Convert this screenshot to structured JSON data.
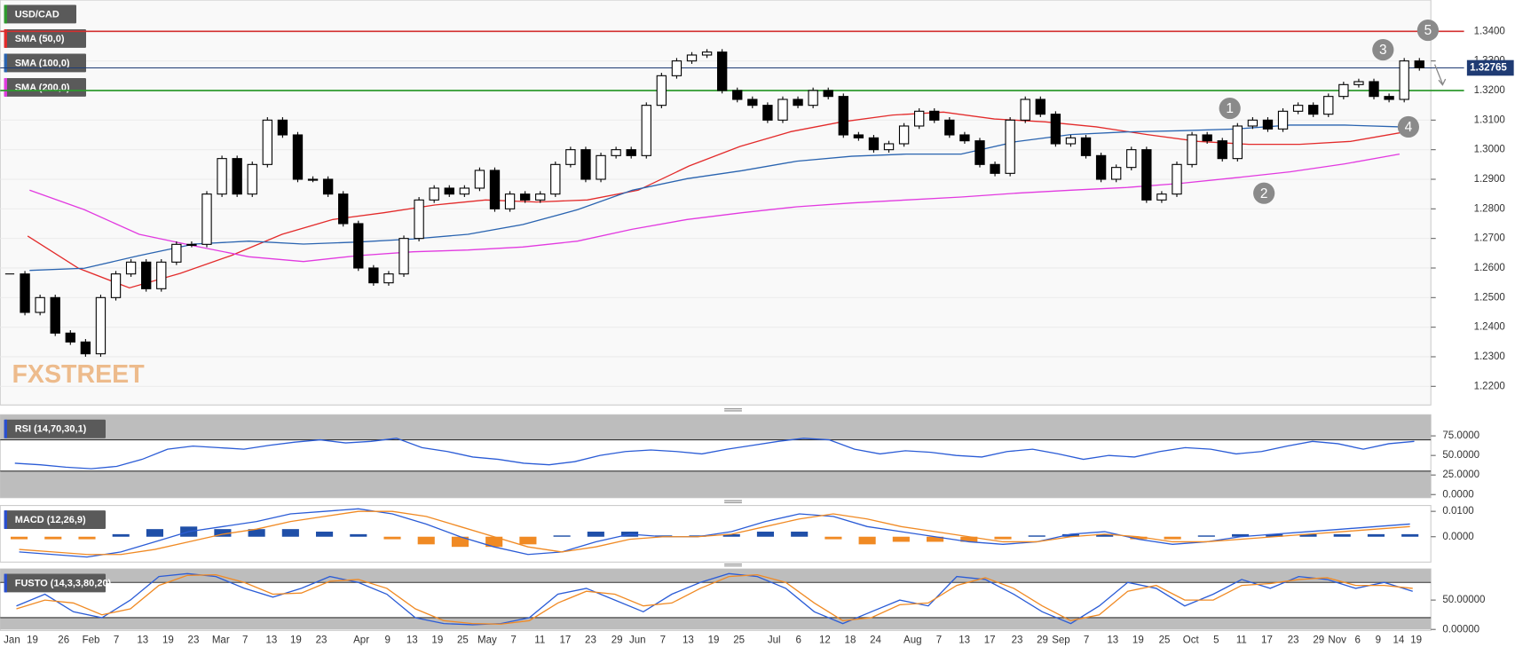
{
  "chart_data": [
    {
      "type": "candlestick",
      "title": "USD/CAD",
      "title_color": "#2e9a2e",
      "close": [
        1.258,
        1.245,
        1.25,
        1.238,
        1.235,
        1.231,
        1.25,
        1.258,
        1.262,
        1.253,
        1.262,
        1.268,
        1.268,
        1.285,
        1.297,
        1.285,
        1.295,
        1.31,
        1.305,
        1.29,
        1.29,
        1.285,
        1.275,
        1.26,
        1.255,
        1.258,
        1.27,
        1.283,
        1.287,
        1.285,
        1.287,
        1.293,
        1.28,
        1.285,
        1.283,
        1.285,
        1.295,
        1.3,
        1.29,
        1.298,
        1.3,
        1.298,
        1.315,
        1.325,
        1.33,
        1.332,
        1.333,
        1.32,
        1.317,
        1.315,
        1.31,
        1.317,
        1.315,
        1.32,
        1.318,
        1.305,
        1.304,
        1.3,
        1.302,
        1.308,
        1.313,
        1.31,
        1.305,
        1.303,
        1.295,
        1.292,
        1.31,
        1.317,
        1.312,
        1.302,
        1.304,
        1.298,
        1.29,
        1.294,
        1.3,
        1.283,
        1.285,
        1.295,
        1.305,
        1.303,
        1.297,
        1.308,
        1.31,
        1.307,
        1.313,
        1.315,
        1.312,
        1.318,
        1.322,
        1.323,
        1.318,
        1.317,
        1.33,
        1.3277
      ],
      "series": [
        {
          "name": "SMA (50,0)",
          "color": "#e32b2b",
          "values": [
            1.2708,
            1.2599,
            1.2533,
            1.2582,
            1.2642,
            1.2714,
            1.2764,
            1.2787,
            1.2813,
            1.283,
            1.2823,
            1.283,
            1.2863,
            1.2945,
            1.3011,
            1.3061,
            1.3094,
            1.3117,
            1.3127,
            1.3104,
            1.3094,
            1.3077,
            1.3051,
            1.3028,
            1.3018,
            1.3018,
            1.3028,
            1.3058
          ]
        },
        {
          "name": "SMA (100,0)",
          "color": "#2a64b0",
          "values": [
            1.2592,
            1.2599,
            1.2642,
            1.2681,
            1.2691,
            1.2681,
            1.2688,
            1.2698,
            1.2714,
            1.2747,
            1.2797,
            1.2863,
            1.2902,
            1.2929,
            1.2961,
            1.2978,
            1.2985,
            1.2985,
            1.3027,
            1.3051,
            1.306,
            1.3064,
            1.307,
            1.3083,
            1.3083,
            1.3077
          ]
        },
        {
          "name": "SMA (200,0)",
          "color": "#e23ae0",
          "values": [
            1.2863,
            1.2797,
            1.2714,
            1.2675,
            1.2638,
            1.2622,
            1.2642,
            1.2655,
            1.2661,
            1.2671,
            1.2691,
            1.2731,
            1.2764,
            1.2787,
            1.2807,
            1.282,
            1.283,
            1.284,
            1.2853,
            1.2863,
            1.2872,
            1.2886,
            1.2905,
            1.2925,
            1.2952,
            1.2985
          ]
        }
      ],
      "levels": [
        {
          "value": 1.34,
          "color": "#d32f2f"
        },
        {
          "value": 1.32,
          "color": "#2e9a2e"
        }
      ],
      "last_price": 1.32765,
      "last_color": "#1f3b73",
      "ylim": [
        1.2137,
        1.3506
      ],
      "yticks": [
        {
          "value": 1.22,
          "label": "1.2200"
        },
        {
          "value": 1.23,
          "label": "1.2300"
        },
        {
          "value": 1.24,
          "label": "1.2400"
        },
        {
          "value": 1.25,
          "label": "1.2500"
        },
        {
          "value": 1.26,
          "label": "1.2600"
        },
        {
          "value": 1.27,
          "label": "1.2700"
        },
        {
          "value": 1.28,
          "label": "1.2800"
        },
        {
          "value": 1.29,
          "label": "1.2900"
        },
        {
          "value": 1.3,
          "label": "1.3000"
        },
        {
          "value": 1.31,
          "label": "1.3100"
        },
        {
          "value": 1.32,
          "label": "1.3200"
        },
        {
          "value": 1.33,
          "label": "1.3300"
        },
        {
          "value": 1.34,
          "label": "1.3400"
        }
      ],
      "date_labels": [
        "Jan",
        "19",
        "26",
        "Feb",
        "7",
        "13",
        "19",
        "23",
        "Mar",
        "7",
        "13",
        "19",
        "23",
        "Apr",
        "9",
        "13",
        "19",
        "25",
        "May",
        "7",
        "11",
        "17",
        "23",
        "29",
        "Jun",
        "7",
        "13",
        "19",
        "25",
        "Jul",
        "6",
        "12",
        "18",
        "24",
        "Aug",
        "7",
        "13",
        "17",
        "23",
        "29",
        "Sep",
        "7",
        "13",
        "19",
        "25",
        "Oct",
        "5",
        "11",
        "17",
        "23",
        "29",
        "Nov",
        "6",
        "9",
        "14",
        "19"
      ],
      "annotations": [
        "1",
        "2",
        "3",
        "4",
        "5"
      ],
      "watermark": "FXSTREET"
    },
    {
      "type": "line",
      "title": "RSI (14,70,30,1)",
      "title_color": "#2a4fd0",
      "series": [
        {
          "color": "#2b5cd6",
          "values": [
            40,
            38,
            35,
            33,
            36,
            45,
            58,
            62,
            60,
            58,
            63,
            67,
            70,
            66,
            68,
            72,
            60,
            55,
            48,
            45,
            40,
            38,
            42,
            50,
            55,
            57,
            55,
            52,
            58,
            63,
            68,
            72,
            70,
            58,
            52,
            56,
            54,
            50,
            48,
            55,
            58,
            52,
            45,
            50,
            48,
            55,
            60,
            58,
            52,
            55,
            62,
            68,
            65,
            58,
            65,
            68
          ]
        }
      ],
      "overbought": 70,
      "oversold": 30,
      "ylim": [
        -4,
        102
      ],
      "yticks": [
        {
          "value": 0,
          "label": "0.0000"
        },
        {
          "value": 25,
          "label": "25.0000"
        },
        {
          "value": 50,
          "label": "50.0000"
        },
        {
          "value": 75,
          "label": "75.0000"
        }
      ]
    },
    {
      "type": "macd",
      "title": "MACD (12,26,9)",
      "title_color": "#2a4fd0",
      "series": [
        {
          "color": "#2b5cd6",
          "values": [
            -0.006,
            -0.007,
            -0.008,
            -0.006,
            -0.002,
            0.002,
            0.004,
            0.006,
            0.009,
            0.01,
            0.011,
            0.009,
            0.005,
            0.0,
            -0.004,
            -0.007,
            -0.006,
            -0.002,
            0.001,
            0.0,
            0.0,
            0.002,
            0.006,
            0.009,
            0.008,
            0.004,
            0.002,
            0.0,
            -0.002,
            -0.003,
            -0.002,
            0.001,
            0.002,
            -0.001,
            -0.003,
            -0.002,
            0.0,
            0.001,
            0.002,
            0.003,
            0.004,
            0.005
          ]
        },
        {
          "color": "#f08a24",
          "values": [
            -0.005,
            -0.006,
            -0.007,
            -0.007,
            -0.005,
            -0.002,
            0.001,
            0.003,
            0.006,
            0.008,
            0.01,
            0.01,
            0.008,
            0.004,
            0.0,
            -0.004,
            -0.006,
            -0.004,
            -0.001,
            0.0,
            0.0,
            0.001,
            0.004,
            0.007,
            0.009,
            0.007,
            0.004,
            0.002,
            0.0,
            -0.002,
            -0.002,
            0.0,
            0.001,
            0.0,
            -0.002,
            -0.002,
            -0.001,
            0.0,
            0.001,
            0.002,
            0.003,
            0.004
          ]
        }
      ],
      "histogram": {
        "positive_color": "#1f4fa8",
        "negative_color": "#f08a24",
        "values": [
          -0.001,
          -0.001,
          -0.001,
          0.001,
          0.003,
          0.004,
          0.003,
          0.003,
          0.003,
          0.002,
          0.001,
          -0.001,
          -0.003,
          -0.004,
          -0.004,
          -0.003,
          0.0005,
          0.002,
          0.002,
          0.0005,
          0.0005,
          0.001,
          0.002,
          0.002,
          -0.001,
          -0.003,
          -0.002,
          -0.002,
          -0.002,
          -0.001,
          0.0005,
          0.001,
          0.001,
          -0.001,
          -0.001,
          0.0005,
          0.001,
          0.001,
          0.001,
          0.001,
          0.001,
          0.001
        ]
      },
      "ylim": [
        -0.01,
        0.0123
      ],
      "yticks": [
        {
          "value": 0,
          "label": "0.0000"
        },
        {
          "value": 0.01,
          "label": "0.0100"
        }
      ]
    },
    {
      "type": "line",
      "title": "FUSTO (14,3,3,80,20)",
      "title_color": "#2a4fd0",
      "series": [
        {
          "color": "#2b5cd6",
          "values": [
            40,
            60,
            30,
            20,
            50,
            90,
            95,
            90,
            70,
            55,
            70,
            90,
            80,
            60,
            20,
            10,
            8,
            10,
            20,
            60,
            70,
            50,
            30,
            60,
            80,
            95,
            90,
            70,
            30,
            10,
            30,
            50,
            40,
            90,
            85,
            60,
            30,
            10,
            40,
            80,
            70,
            40,
            60,
            85,
            70,
            90,
            85,
            70,
            80,
            65
          ]
        },
        {
          "color": "#f08a24",
          "values": [
            35,
            50,
            45,
            25,
            35,
            75,
            92,
            93,
            80,
            60,
            62,
            82,
            85,
            70,
            35,
            15,
            10,
            9,
            15,
            45,
            65,
            60,
            40,
            45,
            70,
            90,
            93,
            80,
            45,
            15,
            20,
            42,
            45,
            75,
            88,
            70,
            40,
            15,
            25,
            65,
            75,
            50,
            50,
            75,
            78,
            85,
            88,
            75,
            75,
            70
          ]
        }
      ],
      "overbought": 80,
      "oversold": 20,
      "ylim": [
        0,
        103
      ],
      "yticks": [
        {
          "value": 0,
          "label": "0.00000"
        },
        {
          "value": 50,
          "label": "50.00000"
        }
      ]
    }
  ]
}
